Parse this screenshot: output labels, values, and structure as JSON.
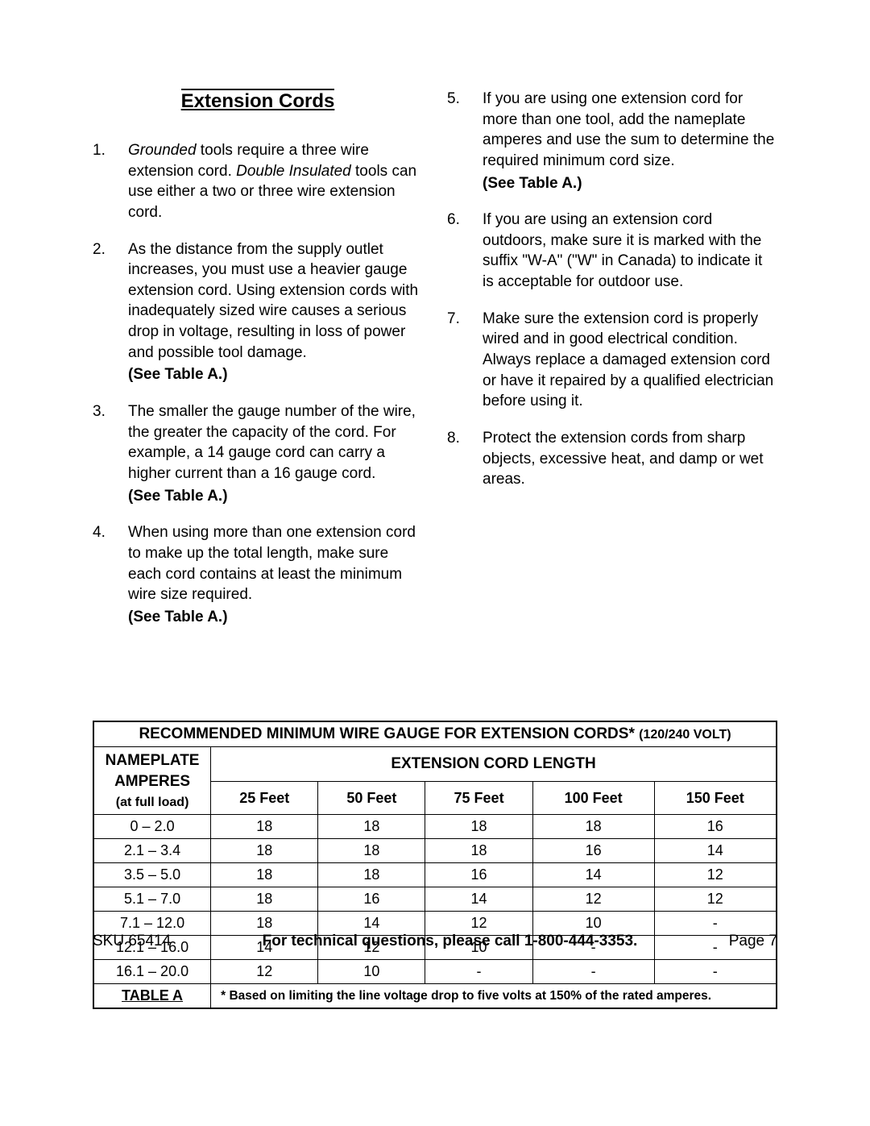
{
  "heading": "Extension Cords",
  "see_label": "(See Table A.)",
  "left_items": [
    {
      "num": 1,
      "html": "<span class=\"italic\">Grounded</span> tools require a three wire extension cord.  <span class=\"italic\">Double Insulated</span> tools can use either a two or three wire extension cord.",
      "see": false
    },
    {
      "num": 2,
      "html": "As the distance from the supply outlet increases, you must use a heavier gauge extension cord.  Using extension cords with inadequately sized wire causes a serious drop in voltage, resulting in loss of power and possible tool damage.",
      "see": true
    },
    {
      "num": 3,
      "html": "The smaller the gauge number of the wire, the greater the capacity of the cord.  For example, a 14 gauge cord can carry a higher current than a 16 gauge cord.",
      "see": true
    },
    {
      "num": 4,
      "html": "When using more than one extension cord to make up the total length, make sure each cord contains at least the minimum wire size required.",
      "see": true
    }
  ],
  "right_items": [
    {
      "num": 5,
      "html": "If you are using one extension cord for more than one tool, add the nameplate amperes and use the sum to determine the required minimum cord size.",
      "see": true
    },
    {
      "num": 6,
      "html": "If you are using an extension cord outdoors, make sure it is marked with the suffix \"W-A\" (\"W\" in Canada) to indicate it is acceptable for outdoor use.",
      "see": false
    },
    {
      "num": 7,
      "html": "Make sure the extension cord is properly wired and in good electrical condition.  Always replace a damaged extension cord or have it repaired by a qualified electrician before using it.",
      "see": false
    },
    {
      "num": 8,
      "html": "Protect the extension cords from sharp objects, excessive heat, and damp or wet areas.",
      "see": false
    }
  ],
  "table": {
    "title_main": "RECOMMENDED MINIMUM WIRE GAUGE FOR EXTENSION CORDS* ",
    "title_volt": "(120/240 VOLT)",
    "nameplate_line1": "NAMEPLATE",
    "nameplate_line2": "AMPERES",
    "nameplate_sub": "(at full load)",
    "ext_header": "EXTENSION CORD LENGTH",
    "feet": [
      "25 Feet",
      "50 Feet",
      "75 Feet",
      "100 Feet",
      "150 Feet"
    ],
    "rows": [
      {
        "amp": "0 – 2.0",
        "v": [
          "18",
          "18",
          "18",
          "18",
          "16"
        ]
      },
      {
        "amp": "2.1 – 3.4",
        "v": [
          "18",
          "18",
          "18",
          "16",
          "14"
        ]
      },
      {
        "amp": "3.5 – 5.0",
        "v": [
          "18",
          "18",
          "16",
          "14",
          "12"
        ]
      },
      {
        "amp": "5.1 – 7.0",
        "v": [
          "18",
          "16",
          "14",
          "12",
          "12"
        ]
      },
      {
        "amp": "7.1 – 12.0",
        "v": [
          "18",
          "14",
          "12",
          "10",
          "-"
        ]
      },
      {
        "amp": "12.1 – 16.0",
        "v": [
          "14",
          "12",
          "10",
          "-",
          "-"
        ]
      },
      {
        "amp": "16.1 – 20.0",
        "v": [
          "12",
          "10",
          "-",
          "-",
          "-"
        ]
      }
    ],
    "foot_label": "TABLE A",
    "foot_note": "* Based on limiting the line voltage drop to five volts at 150% of the rated amperes."
  },
  "footer": {
    "sku": "SKU 65414",
    "call": "For technical questions, please call 1-800-444-3353.",
    "page": "Page 7"
  }
}
